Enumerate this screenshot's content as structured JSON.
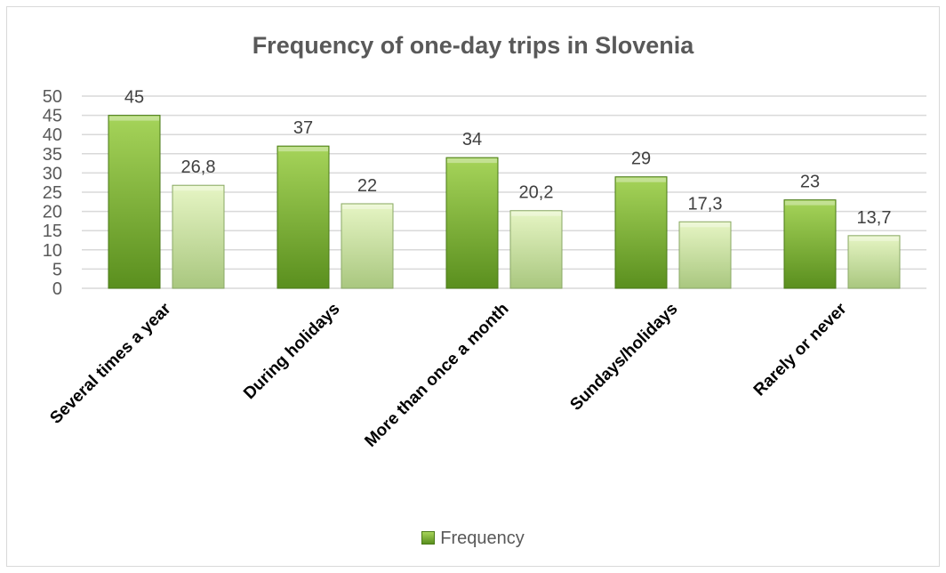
{
  "chart_data": {
    "type": "bar",
    "title": "Frequency of one-day trips in Slovenia",
    "categories": [
      "Several times a year",
      "During holidays",
      "More than once a month",
      "Sundays/holidays",
      "Rarely or never"
    ],
    "series": [
      {
        "name": "Frequency",
        "values": [
          45,
          37,
          34,
          29,
          23
        ],
        "labels": [
          "45",
          "37",
          "34",
          "29",
          "23"
        ]
      },
      {
        "values": [
          26.8,
          22,
          20.2,
          17.3,
          13.7
        ],
        "labels": [
          "26,8",
          "22",
          "20,2",
          "17,3",
          "13,7"
        ]
      }
    ],
    "ylim": [
      0,
      50
    ],
    "yticks": [
      "0",
      "5",
      "10",
      "15",
      "20",
      "25",
      "30",
      "35",
      "40",
      "45",
      "50"
    ],
    "grid": true,
    "legend_position": "bottom",
    "colors": {
      "series1_top": "#a6d45a",
      "series1_bottom": "#5a8f1e",
      "series1_stroke": "#4a7a17",
      "series2_top": "#e6f5c4",
      "series2_bottom": "#a9c77f",
      "series2_stroke": "#8aa866",
      "gridline": "#d9d9d9"
    }
  }
}
